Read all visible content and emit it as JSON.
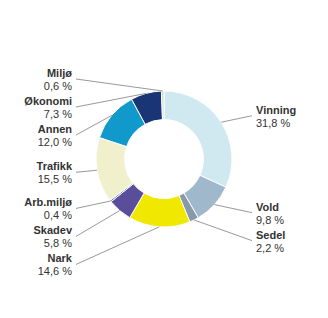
{
  "chart_data": {
    "type": "donut",
    "categories": [
      "Vinning",
      "Vold",
      "Sedel",
      "Nark",
      "Skadev",
      "Arb.miljø",
      "Trafikk",
      "Annen",
      "Økonomi",
      "Miljø"
    ],
    "values": [
      31.8,
      9.8,
      2.2,
      14.6,
      5.8,
      0.4,
      15.5,
      12.0,
      7.3,
      0.6
    ],
    "colors": [
      "#d0e8f0",
      "#a0b8cc",
      "#8899aa",
      "#f0e800",
      "#5a4e9a",
      "#5577cc",
      "#f0f0cc",
      "#1199cc",
      "#1a3575",
      "#ccddcc"
    ],
    "value_labels": [
      "31,8 %",
      "9,8 %",
      "2,2 %",
      "14,6 %",
      "5,8 %",
      "0,4 %",
      "15,5 %",
      "12,0 %",
      "7,3 %",
      "0,6 %"
    ],
    "data_labels": true
  }
}
